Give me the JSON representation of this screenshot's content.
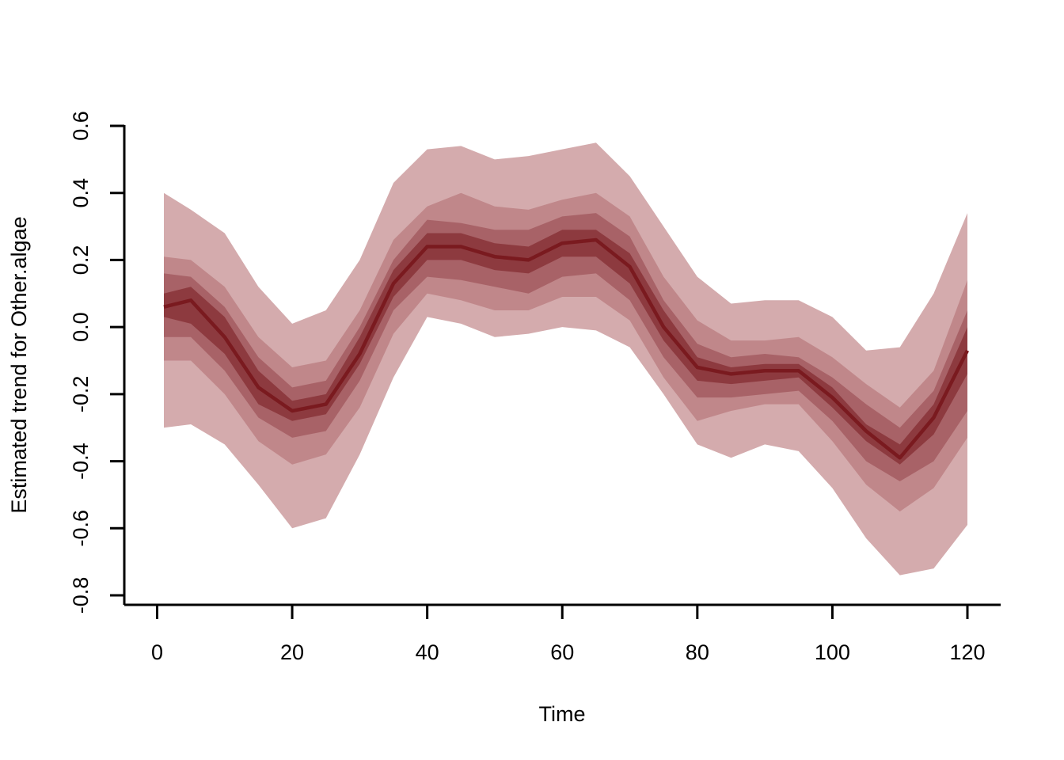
{
  "chart_data": {
    "type": "area",
    "title": "",
    "xlabel": "Time",
    "ylabel": "Estimated trend for Other.algae",
    "xlim": [
      1,
      120
    ],
    "ylim": [
      -0.8,
      0.6
    ],
    "x_ticks": [
      0,
      20,
      40,
      60,
      80,
      100,
      120
    ],
    "y_ticks": [
      -0.8,
      -0.6,
      -0.4,
      -0.2,
      0.0,
      0.2,
      0.4,
      0.6
    ],
    "x_tick_labels": [
      "0",
      "20",
      "40",
      "60",
      "80",
      "100",
      "120"
    ],
    "y_tick_labels": [
      "-0.8",
      "-0.6",
      "-0.4",
      "-0.2",
      "0.0",
      "0.2",
      "0.4",
      "0.6"
    ],
    "grid": false,
    "colors": {
      "band_outer": "#d4abad",
      "band_2": "#c0878a",
      "band_3": "#a86267",
      "band_inner": "#8d3a3f",
      "median_line": "#7a1a1f",
      "axis": "#000000"
    },
    "x": [
      1,
      5,
      10,
      15,
      20,
      25,
      30,
      35,
      40,
      45,
      50,
      55,
      60,
      65,
      70,
      75,
      80,
      85,
      90,
      95,
      100,
      105,
      110,
      115,
      120
    ],
    "bands": [
      {
        "level": "outer",
        "upper": [
          0.4,
          0.35,
          0.28,
          0.12,
          0.01,
          0.05,
          0.2,
          0.43,
          0.53,
          0.54,
          0.5,
          0.51,
          0.53,
          0.55,
          0.45,
          0.3,
          0.15,
          0.07,
          0.08,
          0.08,
          0.03,
          -0.07,
          -0.06,
          0.1,
          0.34
        ],
        "lower": [
          -0.3,
          -0.29,
          -0.35,
          -0.47,
          -0.6,
          -0.57,
          -0.38,
          -0.15,
          0.03,
          0.01,
          -0.03,
          -0.02,
          0.0,
          -0.01,
          -0.06,
          -0.2,
          -0.35,
          -0.39,
          -0.35,
          -0.37,
          -0.48,
          -0.63,
          -0.74,
          -0.72,
          -0.59
        ]
      },
      {
        "level": "2",
        "upper": [
          0.21,
          0.2,
          0.12,
          -0.03,
          -0.12,
          -0.1,
          0.05,
          0.26,
          0.36,
          0.4,
          0.36,
          0.35,
          0.38,
          0.4,
          0.33,
          0.15,
          0.02,
          -0.04,
          -0.04,
          -0.03,
          -0.09,
          -0.17,
          -0.24,
          -0.13,
          0.14
        ]
      },
      {
        "level": "3",
        "upper": [
          0.16,
          0.15,
          0.06,
          -0.09,
          -0.18,
          -0.16,
          0.0,
          0.2,
          0.32,
          0.31,
          0.29,
          0.29,
          0.33,
          0.34,
          0.27,
          0.08,
          -0.05,
          -0.09,
          -0.08,
          -0.09,
          -0.15,
          -0.23,
          -0.3,
          -0.19,
          0.05
        ]
      },
      {
        "level": "inner",
        "upper": [
          0.1,
          0.12,
          0.03,
          -0.13,
          -0.22,
          -0.2,
          -0.03,
          0.17,
          0.28,
          0.28,
          0.25,
          0.24,
          0.29,
          0.29,
          0.22,
          0.05,
          -0.09,
          -0.12,
          -0.11,
          -0.11,
          -0.18,
          -0.29,
          -0.35,
          -0.23,
          0.0
        ]
      }
    ],
    "inner_lowers": [
      [
        0.03,
        0.01,
        -0.08,
        -0.23,
        -0.28,
        -0.26,
        -0.11,
        0.09,
        0.2,
        0.2,
        0.17,
        0.16,
        0.21,
        0.21,
        0.13,
        -0.04,
        -0.16,
        -0.17,
        -0.16,
        -0.15,
        -0.24,
        -0.34,
        -0.41,
        -0.32,
        -0.14
      ],
      [
        -0.03,
        -0.03,
        -0.13,
        -0.27,
        -0.33,
        -0.31,
        -0.16,
        0.05,
        0.15,
        0.14,
        0.12,
        0.1,
        0.15,
        0.16,
        0.08,
        -0.09,
        -0.21,
        -0.21,
        -0.2,
        -0.19,
        -0.28,
        -0.4,
        -0.46,
        -0.4,
        -0.25
      ],
      [
        -0.1,
        -0.1,
        -0.2,
        -0.34,
        -0.41,
        -0.38,
        -0.24,
        -0.02,
        0.1,
        0.08,
        0.05,
        0.05,
        0.09,
        0.09,
        0.02,
        -0.15,
        -0.28,
        -0.25,
        -0.23,
        -0.23,
        -0.34,
        -0.47,
        -0.55,
        -0.48,
        -0.33
      ]
    ],
    "median": [
      0.06,
      0.08,
      -0.03,
      -0.18,
      -0.25,
      -0.23,
      -0.08,
      0.13,
      0.24,
      0.24,
      0.21,
      0.2,
      0.25,
      0.26,
      0.18,
      0.0,
      -0.12,
      -0.14,
      -0.13,
      -0.13,
      -0.21,
      -0.31,
      -0.39,
      -0.27,
      -0.07
    ]
  }
}
